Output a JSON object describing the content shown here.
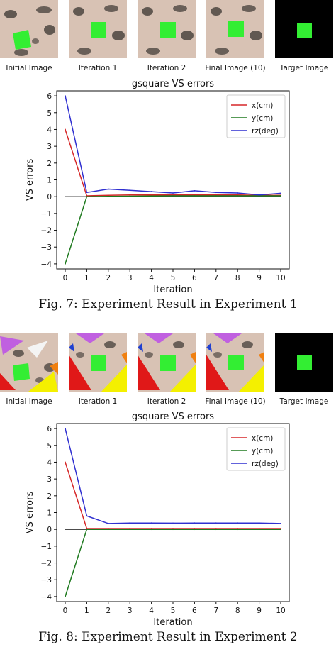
{
  "figures": [
    {
      "thumb_labels": [
        "Initial Image",
        "Iteration 1",
        "Iteration 2",
        "Final Image (10)",
        "Target Image"
      ],
      "caption": "Fig. 7: Experiment Result in Experiment 1"
    },
    {
      "thumb_labels": [
        "Initial Image",
        "Iteration 1",
        "Iteration 2",
        "Final Image (10)",
        "Target Image"
      ],
      "caption": "Fig. 8: Experiment Result in Experiment 2"
    }
  ],
  "colors": {
    "target_bg": "#000000",
    "square": "#33ee33",
    "texture": "#d8c2b4",
    "x_line": "#d62728",
    "y_line": "#1f7a1f",
    "rz_line": "#2f2fd0"
  },
  "chart_data": [
    {
      "type": "line",
      "title": "gsquare VS errors",
      "xlabel": "Iteration",
      "ylabel": "VS errors",
      "x": [
        0,
        1,
        2,
        3,
        4,
        5,
        6,
        7,
        8,
        9,
        10
      ],
      "xlim": [
        0,
        10
      ],
      "ylim": [
        -4.3,
        6.3
      ],
      "xticks": [
        "0",
        "1",
        "2",
        "3",
        "4",
        "5",
        "6",
        "7",
        "8",
        "9",
        "10"
      ],
      "yticks": [
        "6",
        "5",
        "4",
        "3",
        "2",
        "1",
        "0",
        "−1",
        "−2",
        "−3",
        "−4"
      ],
      "legend": "top-right",
      "grid": false,
      "series": [
        {
          "name": "x(cm)",
          "values": [
            4.0,
            0.05,
            0.08,
            0.1,
            0.1,
            0.1,
            0.1,
            0.1,
            0.1,
            0.08,
            0.08
          ]
        },
        {
          "name": "y(cm)",
          "values": [
            -4.0,
            0.0,
            0.02,
            0.03,
            0.04,
            0.05,
            0.05,
            0.05,
            0.05,
            0.05,
            0.05
          ]
        },
        {
          "name": "rz(deg)",
          "values": [
            6.0,
            0.25,
            0.45,
            0.38,
            0.3,
            0.22,
            0.35,
            0.25,
            0.22,
            0.1,
            0.2
          ]
        }
      ]
    },
    {
      "type": "line",
      "title": "gsquare VS errors",
      "xlabel": "Iteration",
      "ylabel": "VS errors",
      "x": [
        0,
        1,
        2,
        3,
        4,
        5,
        6,
        7,
        8,
        9,
        10
      ],
      "xlim": [
        0,
        10
      ],
      "ylim": [
        -4.3,
        6.3
      ],
      "xticks": [
        "0",
        "1",
        "2",
        "3",
        "4",
        "5",
        "6",
        "7",
        "8",
        "9",
        "10"
      ],
      "yticks": [
        "6",
        "5",
        "4",
        "3",
        "2",
        "1",
        "0",
        "−1",
        "−2",
        "−3",
        "−4"
      ],
      "legend": "top-right",
      "grid": false,
      "series": [
        {
          "name": "x(cm)",
          "values": [
            4.0,
            0.05,
            0.05,
            0.05,
            0.05,
            0.05,
            0.05,
            0.05,
            0.05,
            0.05,
            0.05
          ]
        },
        {
          "name": "y(cm)",
          "values": [
            -4.0,
            0.0,
            0.0,
            0.0,
            0.0,
            0.0,
            0.0,
            0.0,
            0.0,
            0.0,
            0.0
          ]
        },
        {
          "name": "rz(deg)",
          "values": [
            6.0,
            0.8,
            0.35,
            0.38,
            0.38,
            0.37,
            0.38,
            0.38,
            0.38,
            0.38,
            0.35
          ]
        }
      ]
    }
  ]
}
